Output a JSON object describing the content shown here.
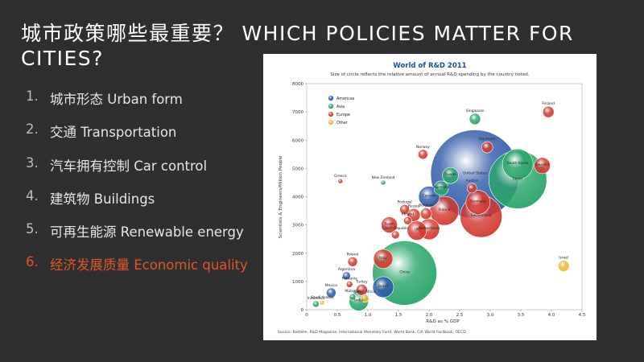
{
  "slide": {
    "title": "城市政策哪些最重要？ WHICH POLICIES MATTER FOR CITIES?",
    "items": [
      {
        "num": "1.",
        "text": "城市形态  Urban form",
        "highlight": false
      },
      {
        "num": "2.",
        "text": "交通  Transportation",
        "highlight": false
      },
      {
        "num": "3.",
        "text": "汽车拥有控制  Car control",
        "highlight": false
      },
      {
        "num": "4.",
        "text": "建筑物  Buildings",
        "highlight": false
      },
      {
        "num": "5.",
        "text": "可再生能源  Renewable energy",
        "highlight": false
      },
      {
        "num": "6.",
        "text": "经济发展质量  Economic quality",
        "highlight": true
      }
    ]
  },
  "colors": {
    "Americas": "#2f5aa8",
    "Asia": "#2aa56a",
    "Europe": "#d23a30",
    "Other": "#f0b43c"
  },
  "chart_data": {
    "type": "scatter",
    "title": "World of R&D 2011",
    "subtitle": "Size of circle reflects the relative amount of annual R&D spending by the country noted.",
    "xlabel": "R&D as % GDP",
    "ylabel": "Scientists & Engineers/Million People",
    "xlim": [
      0,
      4.5
    ],
    "ylim": [
      0,
      8000
    ],
    "xticks": [
      "0",
      "0.5",
      "1.0",
      "1.5",
      "2.0",
      "2.5",
      "3.0",
      "3.5",
      "4.0",
      "4.5"
    ],
    "yticks": [
      "0",
      "1000",
      "2000",
      "3000",
      "4000",
      "5000",
      "6000",
      "7000",
      "8000"
    ],
    "legend": [
      "Americas",
      "Asia",
      "Europe",
      "Other"
    ],
    "legend_position": "top-left",
    "source": "Source: Battelle, R&D Magazine, International Monetary Fund, World Bank, CIA World Factbook, OECD",
    "points": [
      {
        "name": "United States",
        "x": 2.75,
        "y": 4800,
        "r": 55,
        "region": "Americas"
      },
      {
        "name": "China",
        "x": 1.6,
        "y": 1300,
        "r": 40,
        "region": "Asia"
      },
      {
        "name": "Japan",
        "x": 3.45,
        "y": 4600,
        "r": 36,
        "region": "Asia"
      },
      {
        "name": "Switzerland",
        "x": 2.85,
        "y": 3300,
        "r": 26,
        "region": "Europe"
      },
      {
        "name": "France",
        "x": 2.25,
        "y": 3500,
        "r": 18,
        "region": "Europe"
      },
      {
        "name": "South Korea",
        "x": 3.45,
        "y": 5150,
        "r": 19,
        "region": "Asia"
      },
      {
        "name": "Germany",
        "x": 2.8,
        "y": 3800,
        "r": 15,
        "region": "Europe"
      },
      {
        "name": "Netherlands",
        "x": 2.0,
        "y": 2850,
        "r": 13,
        "region": "Europe"
      },
      {
        "name": "Canada",
        "x": 2.0,
        "y": 4000,
        "r": 13,
        "region": "Americas"
      },
      {
        "name": "Taiwan",
        "x": 2.35,
        "y": 4750,
        "r": 10,
        "region": "Asia"
      },
      {
        "name": "Australia",
        "x": 2.2,
        "y": 4300,
        "r": 9,
        "region": "Asia"
      },
      {
        "name": "Austria",
        "x": 2.7,
        "y": 4300,
        "r": 6,
        "region": "Europe"
      },
      {
        "name": "Spain",
        "x": 1.35,
        "y": 3000,
        "r": 10,
        "region": "Europe"
      },
      {
        "name": "Brazil",
        "x": 1.25,
        "y": 800,
        "r": 13,
        "region": "Americas"
      },
      {
        "name": "Italy",
        "x": 1.25,
        "y": 1800,
        "r": 12,
        "region": "Europe"
      },
      {
        "name": "Russia",
        "x": 1.75,
        "y": 3350,
        "r": 8,
        "region": "Europe"
      },
      {
        "name": "UK",
        "x": 1.8,
        "y": 2800,
        "r": 12,
        "region": "Europe"
      },
      {
        "name": "Ireland",
        "x": 1.65,
        "y": 3150,
        "r": 5,
        "region": "Europe"
      },
      {
        "name": "Portugal",
        "x": 1.6,
        "y": 3550,
        "r": 6,
        "region": "Europe"
      },
      {
        "name": "Belgium",
        "x": 1.95,
        "y": 3400,
        "r": 7,
        "region": "Europe"
      },
      {
        "name": "Czech Republic",
        "x": 1.45,
        "y": 2650,
        "r": 5,
        "region": "Europe"
      },
      {
        "name": "Sweden",
        "x": 3.85,
        "y": 5100,
        "r": 10,
        "region": "Europe"
      },
      {
        "name": "Finland",
        "x": 3.95,
        "y": 7000,
        "r": 7,
        "region": "Europe"
      },
      {
        "name": "Denmark",
        "x": 2.95,
        "y": 5750,
        "r": 7,
        "region": "Europe"
      },
      {
        "name": "Norway",
        "x": 1.9,
        "y": 5500,
        "r": 6,
        "region": "Europe"
      },
      {
        "name": "Singapore",
        "x": 2.75,
        "y": 6750,
        "r": 7,
        "region": "Asia"
      },
      {
        "name": "Israel",
        "x": 4.2,
        "y": 1550,
        "r": 7,
        "region": "Other"
      },
      {
        "name": "Greece",
        "x": 0.55,
        "y": 4550,
        "r": 3,
        "region": "Europe"
      },
      {
        "name": "New Zealand",
        "x": 1.25,
        "y": 4500,
        "r": 3,
        "region": "Asia"
      },
      {
        "name": "Poland",
        "x": 0.75,
        "y": 1700,
        "r": 6,
        "region": "Europe"
      },
      {
        "name": "Argentina",
        "x": 0.65,
        "y": 1200,
        "r": 5,
        "region": "Americas"
      },
      {
        "name": "Mexico",
        "x": 0.4,
        "y": 600,
        "r": 6,
        "region": "Americas"
      },
      {
        "name": "Turkey",
        "x": 0.9,
        "y": 700,
        "r": 7,
        "region": "Europe"
      },
      {
        "name": "Romania",
        "x": 0.7,
        "y": 900,
        "r": 4,
        "region": "Europe"
      },
      {
        "name": "Malaysia",
        "x": 0.75,
        "y": 450,
        "r": 4,
        "region": "Asia"
      },
      {
        "name": "India",
        "x": 0.85,
        "y": 300,
        "r": 12,
        "region": "Asia"
      },
      {
        "name": "South Africa",
        "x": 0.95,
        "y": 400,
        "r": 5,
        "region": "Other"
      },
      {
        "name": "Saudi Arabia",
        "x": 0.25,
        "y": 250,
        "r": 3,
        "region": "Other"
      },
      {
        "name": "Indonesia",
        "x": 0.15,
        "y": 200,
        "r": 4,
        "region": "Asia"
      }
    ]
  }
}
